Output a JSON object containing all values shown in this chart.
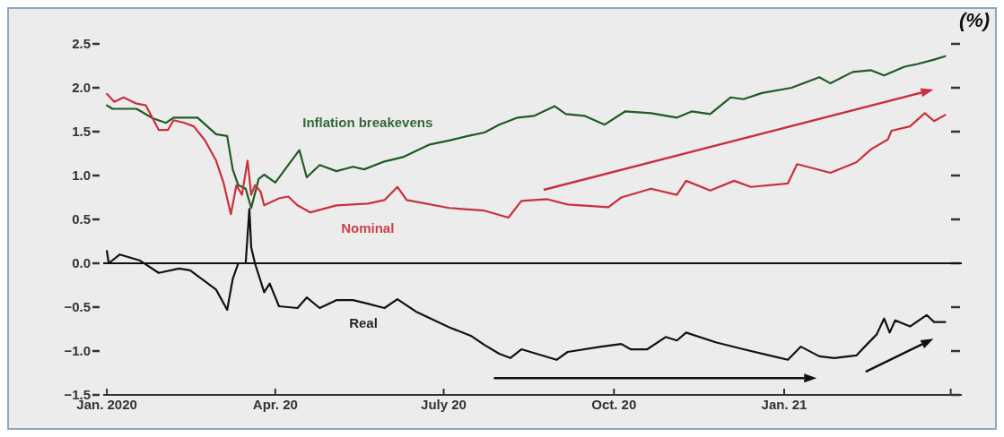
{
  "chart_data": {
    "type": "line",
    "ylabel": "(%)",
    "xlim": [
      "2019-12-30",
      "2021-04-07"
    ],
    "ylim": [
      -1.5,
      2.5
    ],
    "xticks": [
      {
        "value": "2020-01-01",
        "label": "Jan. 2020"
      },
      {
        "value": "2020-04-01",
        "label": "Apr. 20"
      },
      {
        "value": "2020-07-01",
        "label": "July 20"
      },
      {
        "value": "2020-10-01",
        "label": "Oct. 20"
      },
      {
        "value": "2021-01-01",
        "label": "Jan. 21"
      },
      {
        "value": "2021-04-01",
        "label": null
      }
    ],
    "yticks": [
      {
        "value": 2.5,
        "label": "2.5"
      },
      {
        "value": 2,
        "label": "2.0"
      },
      {
        "value": 1.5,
        "label": "1.5"
      },
      {
        "value": 1,
        "label": "1.0"
      },
      {
        "value": 0.5,
        "label": "0.5"
      },
      {
        "value": 0,
        "label": "0.0"
      },
      {
        "value": -0.5,
        "label": "−0.5"
      },
      {
        "value": -1,
        "label": "−1.0"
      },
      {
        "value": -1.5,
        "label": "−1.5"
      }
    ],
    "ref_lines": [
      {
        "axis": "y",
        "value": 0,
        "color": "#111111"
      }
    ],
    "legend": false,
    "marker": "none",
    "line_style": "solid",
    "series": [
      {
        "name": "Inflation breakevens",
        "color": "#1f5a24",
        "x": [
          "2020-01-01",
          "2020-01-04",
          "2020-01-17",
          "2020-01-26",
          "2020-02-02",
          "2020-02-06",
          "2020-02-19",
          "2020-02-29",
          "2020-03-06",
          "2020-03-09",
          "2020-03-12",
          "2020-03-16",
          "2020-03-19",
          "2020-03-23",
          "2020-03-26",
          "2020-04-01",
          "2020-04-14",
          "2020-04-18",
          "2020-04-25",
          "2020-05-04",
          "2020-05-13",
          "2020-05-19",
          "2020-05-30",
          "2020-06-09",
          "2020-06-23",
          "2020-07-04",
          "2020-07-14",
          "2020-07-23",
          "2020-07-31",
          "2020-08-10",
          "2020-08-19",
          "2020-08-30",
          "2020-09-05",
          "2020-09-15",
          "2020-09-26",
          "2020-10-07",
          "2020-10-21",
          "2020-11-04",
          "2020-11-12",
          "2020-11-22",
          "2020-12-03",
          "2020-12-10",
          "2020-12-20",
          "2021-01-05",
          "2021-01-20",
          "2021-01-26",
          "2021-02-07",
          "2021-02-17",
          "2021-02-24",
          "2021-03-07",
          "2021-03-14",
          "2021-03-23",
          "2021-03-29"
        ],
        "values": [
          1.8,
          1.76,
          1.76,
          1.65,
          1.6,
          1.66,
          1.66,
          1.47,
          1.45,
          1.07,
          0.89,
          0.85,
          0.63,
          0.96,
          1.01,
          0.92,
          1.29,
          0.98,
          1.12,
          1.05,
          1.1,
          1.07,
          1.16,
          1.21,
          1.35,
          1.4,
          1.45,
          1.49,
          1.58,
          1.66,
          1.68,
          1.79,
          1.7,
          1.68,
          1.58,
          1.73,
          1.71,
          1.66,
          1.73,
          1.7,
          1.89,
          1.87,
          1.94,
          2.0,
          2.12,
          2.05,
          2.18,
          2.2,
          2.14,
          2.24,
          2.27,
          2.32,
          2.36
        ]
      },
      {
        "name": "Nominal",
        "color": "#c8303c",
        "x": [
          "2020-01-01",
          "2020-01-05",
          "2020-01-10",
          "2020-01-17",
          "2020-01-22",
          "2020-01-29",
          "2020-02-03",
          "2020-02-06",
          "2020-02-12",
          "2020-02-17",
          "2020-02-23",
          "2020-02-29",
          "2020-03-04",
          "2020-03-08",
          "2020-03-11",
          "2020-03-14",
          "2020-03-17",
          "2020-03-19",
          "2020-03-21",
          "2020-03-24",
          "2020-03-26",
          "2020-04-03",
          "2020-04-08",
          "2020-04-13",
          "2020-04-20",
          "2020-05-04",
          "2020-05-21",
          "2020-05-30",
          "2020-06-06",
          "2020-06-11",
          "2020-07-04",
          "2020-07-23",
          "2020-08-05",
          "2020-08-12",
          "2020-08-26",
          "2020-09-06",
          "2020-09-28",
          "2020-10-05",
          "2020-10-21",
          "2020-11-04",
          "2020-11-09",
          "2020-11-22",
          "2020-12-05",
          "2020-12-14",
          "2021-01-03",
          "2021-01-08",
          "2021-01-26",
          "2021-02-09",
          "2021-02-17",
          "2021-02-26",
          "2021-02-28",
          "2021-03-10",
          "2021-03-18",
          "2021-03-23",
          "2021-03-29"
        ],
        "values": [
          1.93,
          1.84,
          1.89,
          1.82,
          1.8,
          1.52,
          1.52,
          1.63,
          1.6,
          1.56,
          1.4,
          1.17,
          0.92,
          0.56,
          0.89,
          0.78,
          1.17,
          0.78,
          0.89,
          0.82,
          0.66,
          0.74,
          0.76,
          0.66,
          0.58,
          0.66,
          0.68,
          0.72,
          0.87,
          0.72,
          0.63,
          0.6,
          0.52,
          0.71,
          0.73,
          0.67,
          0.64,
          0.75,
          0.85,
          0.78,
          0.94,
          0.83,
          0.94,
          0.87,
          0.91,
          1.13,
          1.03,
          1.15,
          1.3,
          1.41,
          1.51,
          1.56,
          1.71,
          1.62,
          1.69
        ]
      },
      {
        "name": "Real",
        "color": "#111111",
        "x": [
          "2020-01-01",
          "2020-01-02",
          "2020-01-08",
          "2020-01-19",
          "2020-01-29",
          "2020-02-09",
          "2020-02-15",
          "2020-02-29",
          "2020-03-06",
          "2020-03-09",
          "2020-03-12",
          "2020-03-16",
          "2020-03-18",
          "2020-03-19",
          "2020-03-21",
          "2020-03-26",
          "2020-03-29",
          "2020-04-03",
          "2020-04-13",
          "2020-04-18",
          "2020-04-25",
          "2020-05-04",
          "2020-05-13",
          "2020-05-21",
          "2020-05-30",
          "2020-06-06",
          "2020-06-16",
          "2020-07-04",
          "2020-07-16",
          "2020-07-23",
          "2020-07-31",
          "2020-08-06",
          "2020-08-12",
          "2020-08-31",
          "2020-09-06",
          "2020-09-24",
          "2020-10-05",
          "2020-10-10",
          "2020-10-19",
          "2020-10-29",
          "2020-11-04",
          "2020-11-09",
          "2020-11-25",
          "2020-12-10",
          "2020-12-26",
          "2021-01-03",
          "2021-01-10",
          "2021-01-20",
          "2021-01-28",
          "2021-02-09",
          "2021-02-14",
          "2021-02-20",
          "2021-02-24",
          "2021-02-27",
          "2021-03-02",
          "2021-03-10",
          "2021-03-19",
          "2021-03-23",
          "2021-03-29"
        ],
        "values": [
          0.14,
          0.0,
          0.1,
          0.03,
          -0.11,
          -0.06,
          -0.08,
          -0.3,
          -0.53,
          -0.18,
          0.0,
          0.0,
          0.62,
          0.18,
          0.0,
          -0.33,
          -0.23,
          -0.49,
          -0.51,
          -0.39,
          -0.51,
          -0.42,
          -0.42,
          -0.46,
          -0.51,
          -0.41,
          -0.55,
          -0.73,
          -0.83,
          -0.93,
          -1.03,
          -1.08,
          -0.98,
          -1.1,
          -1.01,
          -0.95,
          -0.92,
          -0.98,
          -0.98,
          -0.84,
          -0.88,
          -0.79,
          -0.9,
          -0.98,
          -1.06,
          -1.1,
          -0.95,
          -1.06,
          -1.08,
          -1.05,
          -0.94,
          -0.81,
          -0.63,
          -0.79,
          -0.65,
          -0.72,
          -0.59,
          -0.67,
          -0.67
        ]
      }
    ]
  }
}
